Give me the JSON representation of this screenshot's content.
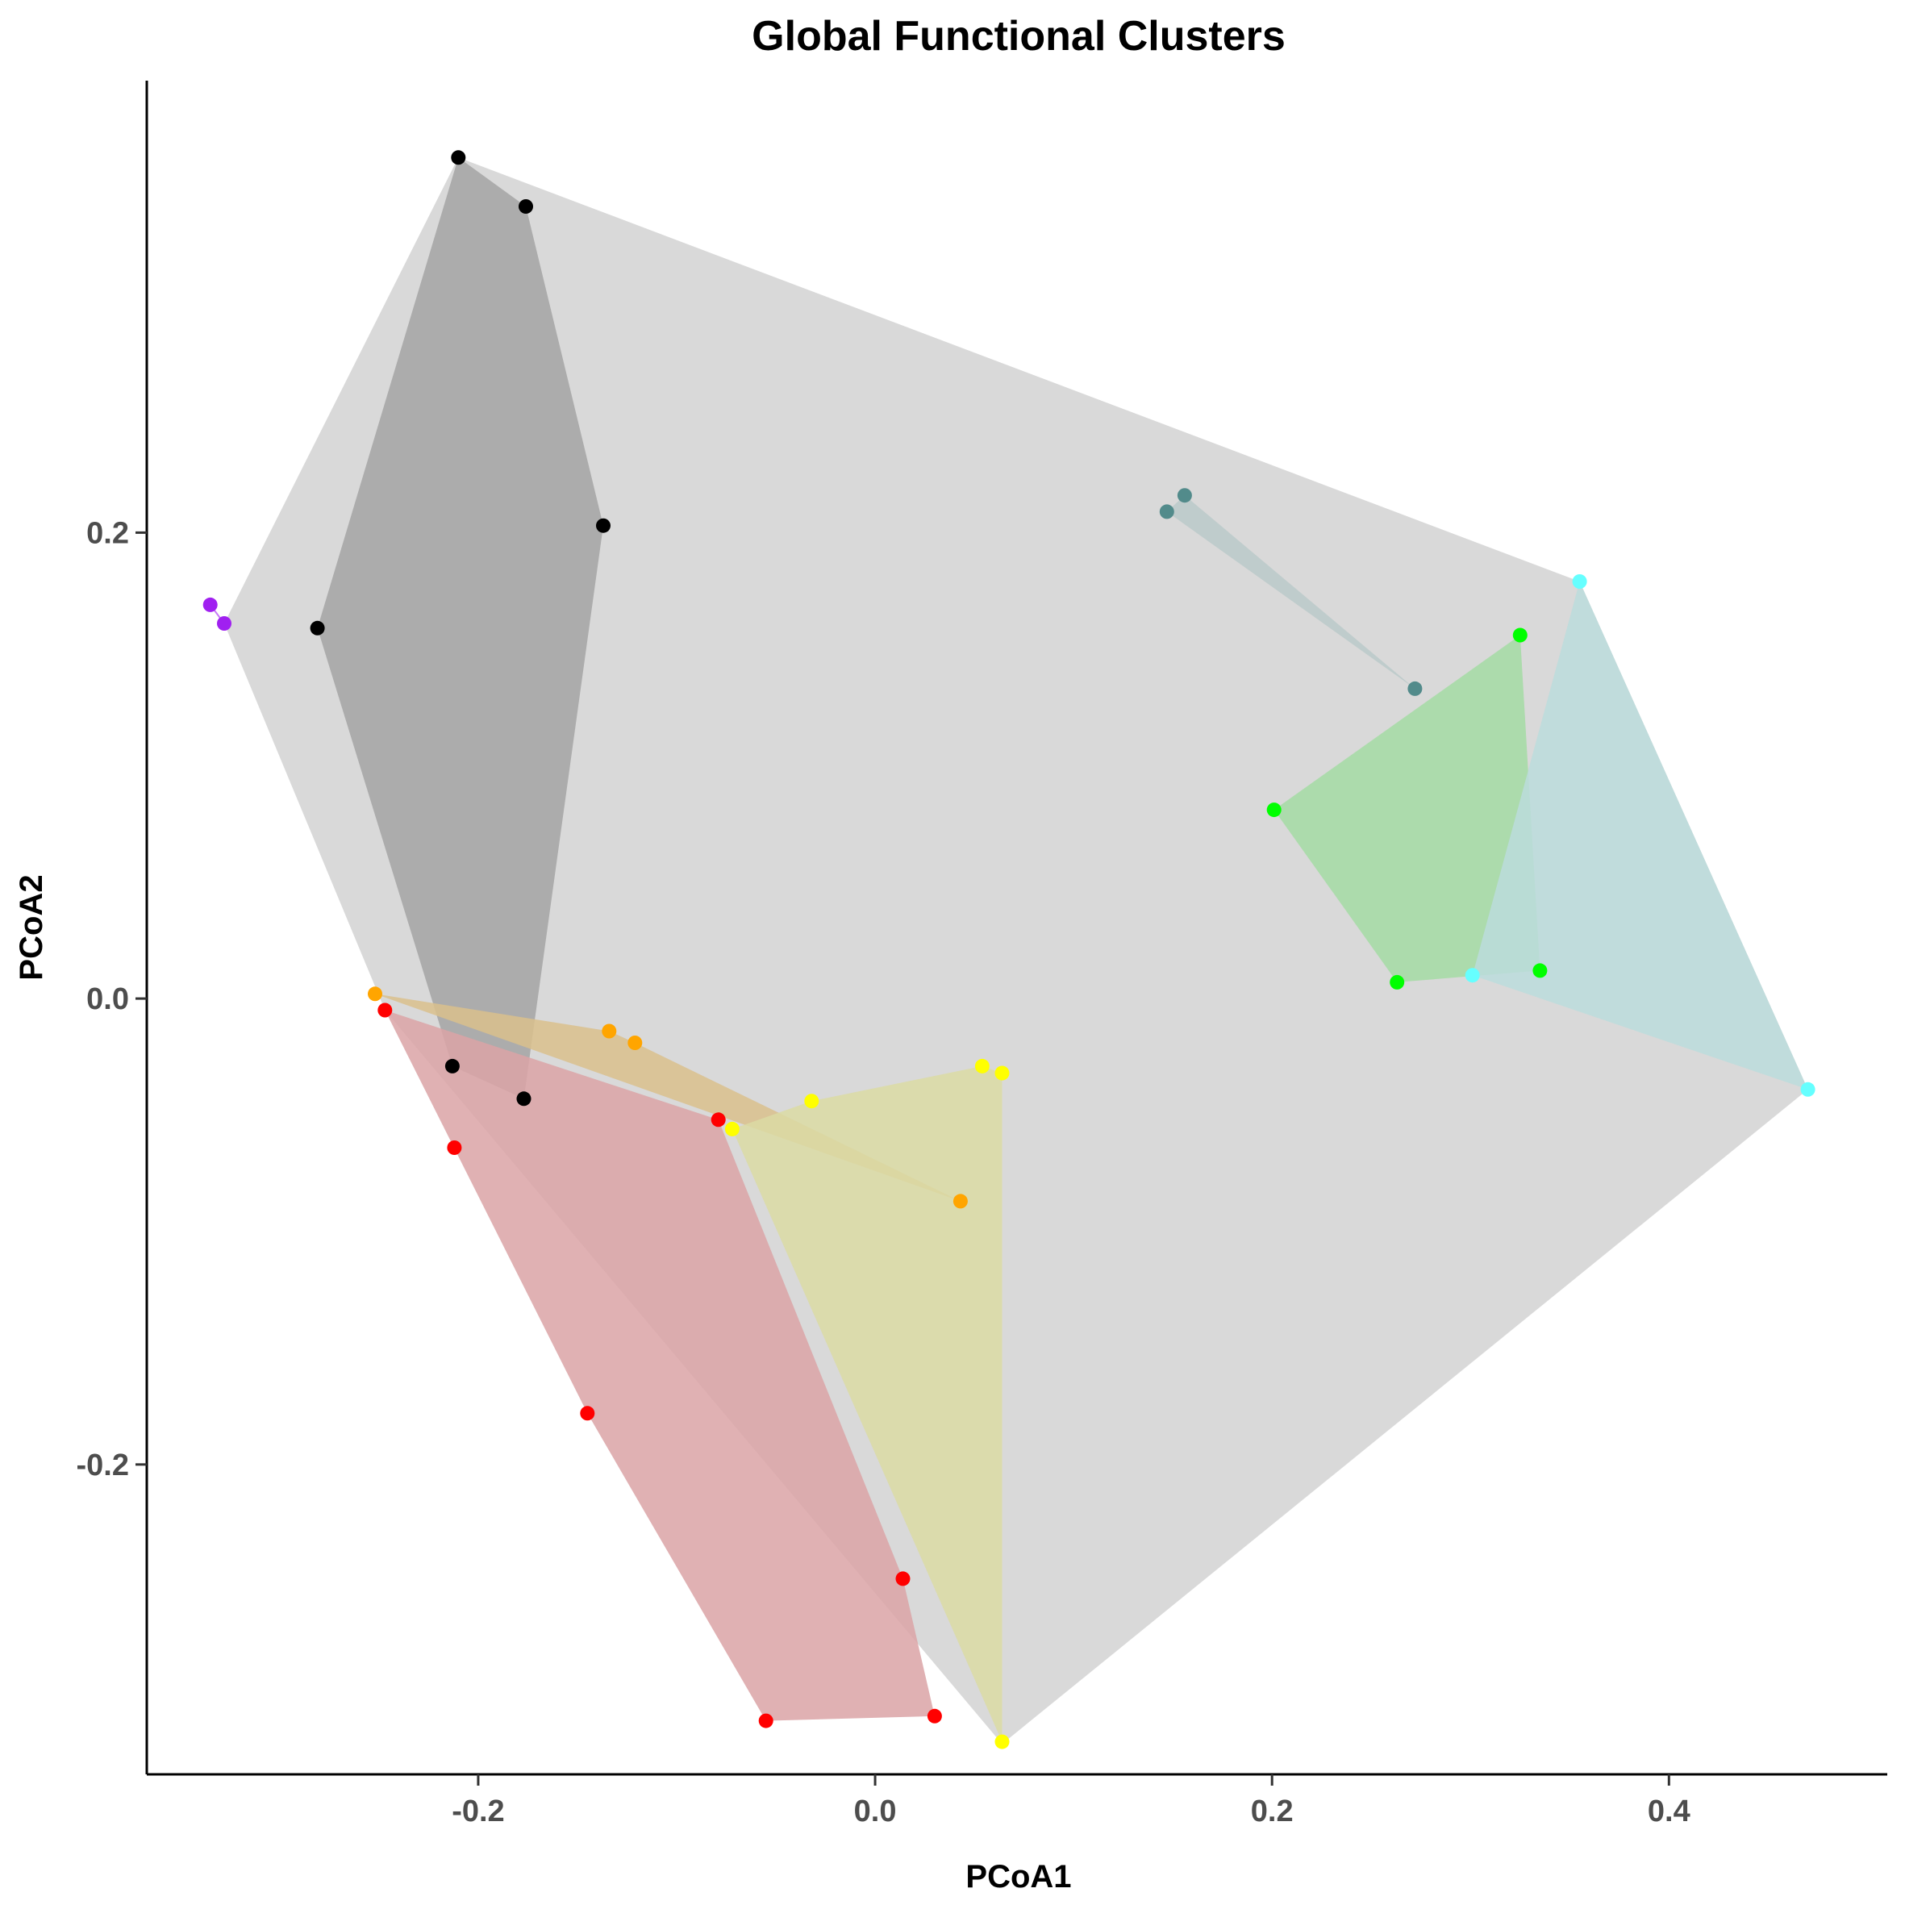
{
  "chart_data": {
    "type": "scatter",
    "title": "Global Functional Clusters",
    "xlabel": "PCoA1",
    "ylabel": "PCoA2",
    "xlim": [
      -0.367,
      0.51
    ],
    "ylim": [
      -0.333,
      0.394
    ],
    "x_ticks": [
      -0.2,
      0.0,
      0.2,
      0.4
    ],
    "x_tick_labels": [
      "-0.2",
      "0.0",
      "0.2",
      "0.4"
    ],
    "y_ticks": [
      -0.2,
      0.0,
      0.2
    ],
    "y_tick_labels": [
      "-0.2",
      "0.0",
      "0.2"
    ],
    "grid": false,
    "global_hull": {
      "color": "#d9d9d9",
      "points": [
        [
          -0.21,
          0.361
        ],
        [
          0.355,
          0.179
        ],
        [
          0.47,
          -0.039
        ],
        [
          0.064,
          -0.32
        ],
        [
          -0.247,
          -0.005
        ],
        [
          -0.328,
          0.161
        ]
      ]
    },
    "series": [
      {
        "color": "#000000",
        "hull_color": "#a3a3a3",
        "points": [
          [
            -0.21,
            0.361
          ],
          [
            -0.176,
            0.34
          ],
          [
            -0.137,
            0.203
          ],
          [
            -0.281,
            0.159
          ],
          [
            -0.213,
            -0.029
          ],
          [
            -0.177,
            -0.043
          ]
        ]
      },
      {
        "color": "#a020f0",
        "hull_color": "#a020f0",
        "points": [
          [
            -0.335,
            0.169
          ],
          [
            -0.328,
            0.161
          ]
        ]
      },
      {
        "color": "#ffa500",
        "hull_color": "#d9bf8c",
        "points": [
          [
            -0.252,
            0.002
          ],
          [
            -0.134,
            -0.014
          ],
          [
            -0.121,
            -0.019
          ],
          [
            0.043,
            -0.087
          ]
        ]
      },
      {
        "color": "#ff0000",
        "hull_color": "#dba3a6",
        "points": [
          [
            -0.247,
            -0.005
          ],
          [
            -0.079,
            -0.052
          ],
          [
            -0.212,
            -0.064
          ],
          [
            -0.145,
            -0.178
          ],
          [
            0.014,
            -0.249
          ],
          [
            -0.055,
            -0.31
          ],
          [
            0.03,
            -0.308
          ]
        ]
      },
      {
        "color": "#ffff00",
        "hull_color": "#dbdba3",
        "points": [
          [
            0.054,
            -0.029
          ],
          [
            0.064,
            -0.032
          ],
          [
            -0.032,
            -0.044
          ],
          [
            -0.072,
            -0.056
          ],
          [
            0.064,
            -0.319
          ]
        ]
      },
      {
        "color": "#528b8b",
        "hull_color": "#bac9c9",
        "points": [
          [
            0.156,
            0.216
          ],
          [
            0.147,
            0.209
          ],
          [
            0.272,
            0.133
          ]
        ]
      },
      {
        "color": "#00ff00",
        "hull_color": "#a3dba3",
        "points": [
          [
            0.325,
            0.156
          ],
          [
            0.201,
            0.081
          ],
          [
            0.335,
            0.012
          ],
          [
            0.263,
            0.007
          ]
        ]
      },
      {
        "color": "#66ffff",
        "hull_color": "#bbdcdc",
        "points": [
          [
            0.355,
            0.179
          ],
          [
            0.301,
            0.01
          ],
          [
            0.47,
            -0.039
          ]
        ]
      }
    ]
  }
}
